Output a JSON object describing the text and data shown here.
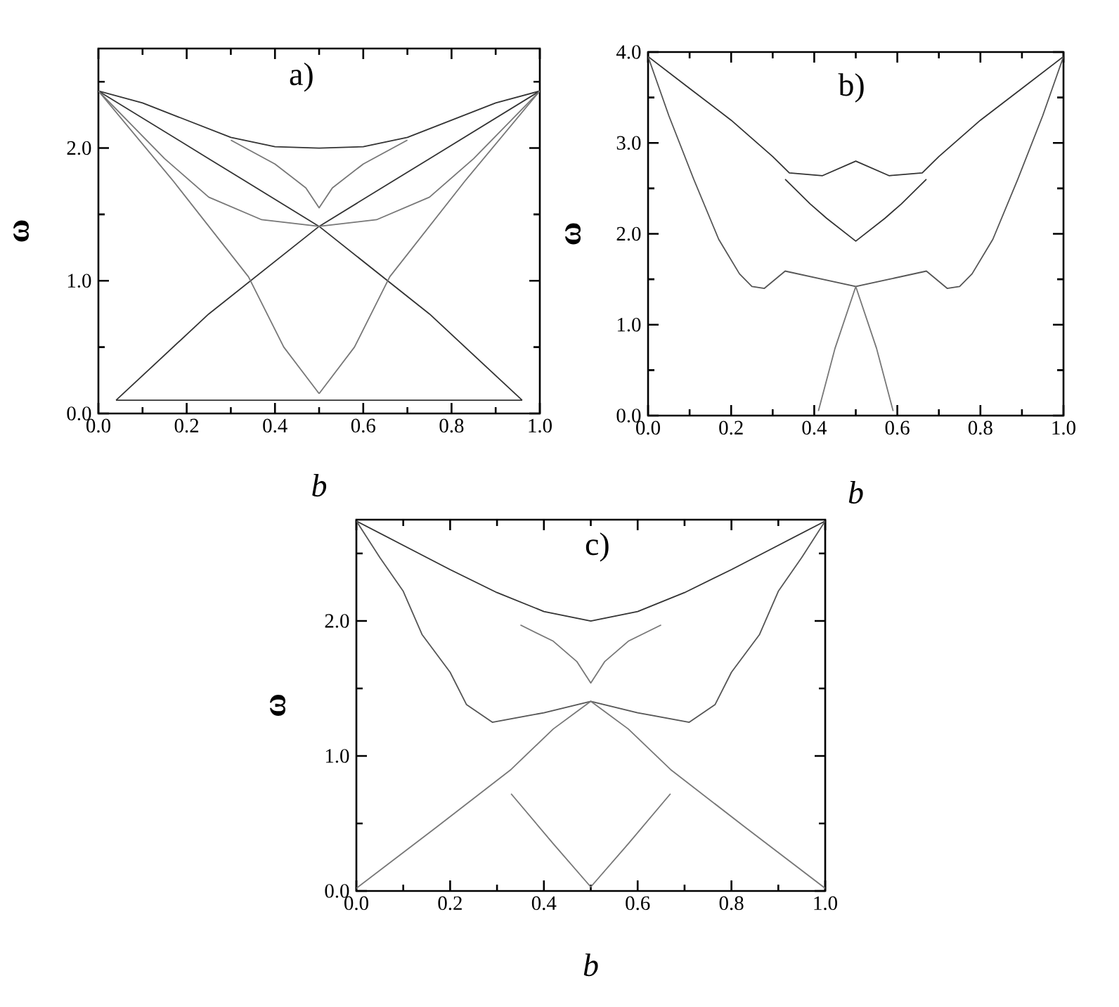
{
  "chart_data": [
    {
      "type": "line",
      "title": "a)",
      "xlabel": "b",
      "ylabel": "ω",
      "xlim": [
        0,
        1
      ],
      "ylim": [
        0,
        2.75
      ],
      "xticks": [
        {
          "value": 0,
          "label": "0.0"
        },
        {
          "value": 0.1,
          "label": null
        },
        {
          "value": 0.2,
          "label": "0.2"
        },
        {
          "value": 0.3,
          "label": null
        },
        {
          "value": 0.4,
          "label": "0.4"
        },
        {
          "value": 0.5,
          "label": null
        },
        {
          "value": 0.6,
          "label": "0.6"
        },
        {
          "value": 0.7,
          "label": null
        },
        {
          "value": 0.8,
          "label": "0.8"
        },
        {
          "value": 0.9,
          "label": null
        },
        {
          "value": 1,
          "label": "1.0"
        }
      ],
      "yticks": [
        {
          "value": 0,
          "label": "0.0"
        },
        {
          "value": 0.5,
          "label": null
        },
        {
          "value": 1,
          "label": "1.0"
        },
        {
          "value": 1.5,
          "label": null
        },
        {
          "value": 2,
          "label": "2.0"
        },
        {
          "value": 2.5,
          "label": null
        }
      ],
      "series": [
        {
          "color": "#333333",
          "x": [
            0,
            0.1,
            0.2,
            0.3,
            0.4,
            0.5,
            0.6,
            0.7,
            0.8,
            0.9,
            1
          ],
          "values": [
            2.43,
            2.34,
            2.21,
            2.08,
            2.01,
            2.0,
            2.01,
            2.08,
            2.21,
            2.34,
            2.43
          ]
        },
        {
          "color": "#333333",
          "x": [
            0,
            0.25,
            0.5,
            0.75,
            0.96
          ],
          "values": [
            2.43,
            1.92,
            1.41,
            0.75,
            0.1
          ]
        },
        {
          "color": "#333333",
          "x": [
            0.04,
            0.25,
            0.5,
            0.75,
            1
          ],
          "values": [
            0.1,
            0.75,
            1.41,
            1.92,
            2.43
          ]
        },
        {
          "color": "#777777",
          "x": [
            0,
            0.15,
            0.25,
            0.37,
            0.5,
            0.63,
            0.75,
            0.85,
            1
          ],
          "values": [
            2.43,
            1.92,
            1.63,
            1.46,
            1.41,
            1.46,
            1.63,
            1.92,
            2.43
          ]
        },
        {
          "color": "#777777",
          "x": [
            0,
            0.17,
            0.34,
            0.42,
            0.5
          ],
          "values": [
            2.43,
            1.75,
            1.03,
            0.5,
            0.15
          ]
        },
        {
          "color": "#777777",
          "x": [
            0.5,
            0.58,
            0.66,
            0.83,
            1
          ],
          "values": [
            0.15,
            0.5,
            1.03,
            1.75,
            2.43
          ]
        },
        {
          "color": "#777777",
          "x": [
            0.3,
            0.4,
            0.47,
            0.5,
            0.53,
            0.6,
            0.7
          ],
          "values": [
            2.06,
            1.88,
            1.7,
            1.55,
            1.7,
            1.88,
            2.06
          ]
        },
        {
          "color": "#333333",
          "x": [
            0.04,
            0.96
          ],
          "values": [
            0.1,
            0.1
          ]
        }
      ]
    },
    {
      "type": "line",
      "title": "b)",
      "xlabel": "b",
      "ylabel": "ω",
      "xlim": [
        0,
        1
      ],
      "ylim": [
        0,
        4
      ],
      "xticks": [
        {
          "value": 0,
          "label": "0.0"
        },
        {
          "value": 0.1,
          "label": null
        },
        {
          "value": 0.2,
          "label": "0.2"
        },
        {
          "value": 0.3,
          "label": null
        },
        {
          "value": 0.4,
          "label": "0.4"
        },
        {
          "value": 0.5,
          "label": null
        },
        {
          "value": 0.6,
          "label": "0.6"
        },
        {
          "value": 0.7,
          "label": null
        },
        {
          "value": 0.8,
          "label": "0.8"
        },
        {
          "value": 0.9,
          "label": null
        },
        {
          "value": 1,
          "label": "1.0"
        }
      ],
      "yticks": [
        {
          "value": 0,
          "label": "0.0"
        },
        {
          "value": 0.5,
          "label": null
        },
        {
          "value": 1,
          "label": "1.0"
        },
        {
          "value": 1.5,
          "label": null
        },
        {
          "value": 2,
          "label": "2.0"
        },
        {
          "value": 2.5,
          "label": null
        },
        {
          "value": 3,
          "label": "3.0"
        },
        {
          "value": 3.5,
          "label": null
        },
        {
          "value": 4,
          "label": "4.0"
        }
      ],
      "series": [
        {
          "color": "#333333",
          "x": [
            0,
            0.1,
            0.2,
            0.3,
            0.34,
            0.42,
            0.5,
            0.58,
            0.66,
            0.7,
            0.8,
            0.9,
            1
          ],
          "values": [
            3.95,
            3.6,
            3.25,
            2.85,
            2.67,
            2.64,
            2.8,
            2.64,
            2.67,
            2.85,
            3.25,
            3.6,
            3.95
          ]
        },
        {
          "color": "#555555",
          "x": [
            0,
            0.05,
            0.11,
            0.17,
            0.22,
            0.25,
            0.28,
            0.33,
            0.42,
            0.5,
            0.58,
            0.67,
            0.72,
            0.75,
            0.78,
            0.83,
            0.89,
            0.95,
            1
          ],
          "values": [
            3.95,
            3.3,
            2.6,
            1.94,
            1.56,
            1.42,
            1.4,
            1.59,
            1.5,
            1.42,
            1.5,
            1.59,
            1.4,
            1.42,
            1.56,
            1.94,
            2.6,
            3.3,
            3.95
          ]
        },
        {
          "color": "#333333",
          "x": [
            0.33,
            0.39,
            0.43,
            0.5,
            0.57,
            0.61,
            0.67
          ],
          "values": [
            2.6,
            2.33,
            2.17,
            1.92,
            2.17,
            2.33,
            2.6
          ]
        },
        {
          "color": "#777777",
          "x": [
            0.41,
            0.45,
            0.5,
            0.55,
            0.59
          ],
          "values": [
            0.05,
            0.74,
            1.42,
            0.74,
            0.05
          ]
        }
      ]
    },
    {
      "type": "line",
      "title": "c)",
      "xlabel": "b",
      "ylabel": "ω",
      "xlim": [
        0,
        1
      ],
      "ylim": [
        0,
        2.75
      ],
      "xticks": [
        {
          "value": 0,
          "label": "0.0"
        },
        {
          "value": 0.1,
          "label": null
        },
        {
          "value": 0.2,
          "label": "0.2"
        },
        {
          "value": 0.3,
          "label": null
        },
        {
          "value": 0.4,
          "label": "0.4"
        },
        {
          "value": 0.5,
          "label": null
        },
        {
          "value": 0.6,
          "label": "0.6"
        },
        {
          "value": 0.7,
          "label": null
        },
        {
          "value": 0.8,
          "label": "0.8"
        },
        {
          "value": 0.9,
          "label": null
        },
        {
          "value": 1,
          "label": "1.0"
        }
      ],
      "yticks": [
        {
          "value": 0,
          "label": "0.0"
        },
        {
          "value": 0.5,
          "label": null
        },
        {
          "value": 1,
          "label": "1.0"
        },
        {
          "value": 1.5,
          "label": null
        },
        {
          "value": 2,
          "label": "2.0"
        },
        {
          "value": 2.5,
          "label": null
        }
      ],
      "series": [
        {
          "color": "#333333",
          "x": [
            0,
            0.1,
            0.2,
            0.3,
            0.4,
            0.5,
            0.6,
            0.7,
            0.8,
            0.9,
            1
          ],
          "values": [
            2.74,
            2.56,
            2.38,
            2.21,
            2.07,
            2.0,
            2.07,
            2.21,
            2.38,
            2.56,
            2.74
          ]
        },
        {
          "color": "#555555",
          "x": [
            0,
            0.05,
            0.1,
            0.14,
            0.2,
            0.235,
            0.29,
            0.4,
            0.5,
            0.6,
            0.71,
            0.765,
            0.8,
            0.86,
            0.9,
            0.95,
            1
          ],
          "values": [
            2.74,
            2.47,
            2.22,
            1.9,
            1.62,
            1.38,
            1.25,
            1.32,
            1.405,
            1.32,
            1.25,
            1.38,
            1.62,
            1.9,
            2.22,
            2.47,
            2.74
          ]
        },
        {
          "color": "#777777",
          "x": [
            0,
            0.17,
            0.33,
            0.42,
            0.5,
            0.58,
            0.67,
            0.83,
            1
          ],
          "values": [
            0.02,
            0.47,
            0.9,
            1.2,
            1.405,
            1.2,
            0.9,
            0.47,
            0.02
          ]
        },
        {
          "color": "#777777",
          "x": [
            0.33,
            0.42,
            0.5,
            0.58,
            0.67
          ],
          "values": [
            0.72,
            0.35,
            0.03,
            0.35,
            0.72
          ]
        },
        {
          "color": "#777777",
          "x": [
            0.35,
            0.42,
            0.47,
            0.5,
            0.53,
            0.58,
            0.65
          ],
          "values": [
            1.97,
            1.85,
            1.7,
            1.54,
            1.7,
            1.85,
            1.97
          ]
        }
      ]
    }
  ]
}
